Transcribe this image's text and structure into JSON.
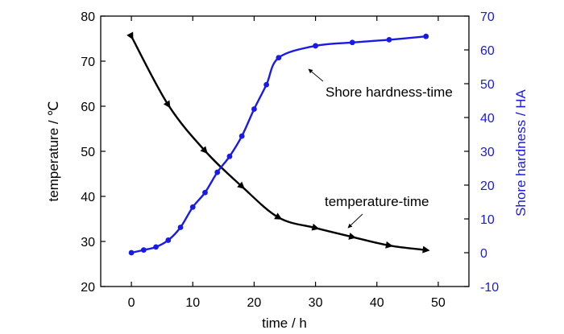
{
  "chart_data": {
    "type": "line",
    "xlabel": "time / h",
    "ylabel_left": "temperature / ℃",
    "ylabel_right": "Shore hardness / HA",
    "xlim": [
      -5,
      55
    ],
    "ylim_left": [
      20,
      80
    ],
    "ylim_right": [
      -10,
      70
    ],
    "xticks": [
      0,
      10,
      20,
      30,
      40,
      50
    ],
    "yticks_left": [
      20,
      30,
      40,
      50,
      60,
      70,
      80
    ],
    "yticks_right": [
      -10,
      0,
      10,
      20,
      30,
      40,
      50,
      60,
      70
    ],
    "grid": false,
    "series": [
      {
        "axis": "left",
        "color": "#000000",
        "marker": "triangle",
        "x": [
          0,
          6,
          12,
          18,
          24,
          30,
          36,
          42,
          48
        ],
        "y": [
          75.5,
          60.3,
          50.1,
          42.2,
          35.3,
          33.0,
          31.0,
          29.1,
          28.1
        ]
      },
      {
        "axis": "right",
        "color": "#1a1ae6",
        "marker": "circle",
        "x": [
          0,
          2,
          4,
          6,
          8,
          10,
          12,
          14,
          16,
          18,
          20,
          22,
          24,
          30,
          36,
          42,
          48
        ],
        "y": [
          0,
          0.8,
          1.7,
          3.7,
          7.5,
          13.5,
          17.8,
          23.8,
          28.5,
          34.5,
          42.5,
          49.7,
          57.7,
          61.2,
          62.2,
          63.0,
          64.0
        ]
      }
    ],
    "annotations": [
      {
        "text": "Shore hardness-time",
        "series": 1
      },
      {
        "text": "temperature-time",
        "series": 0
      }
    ]
  }
}
